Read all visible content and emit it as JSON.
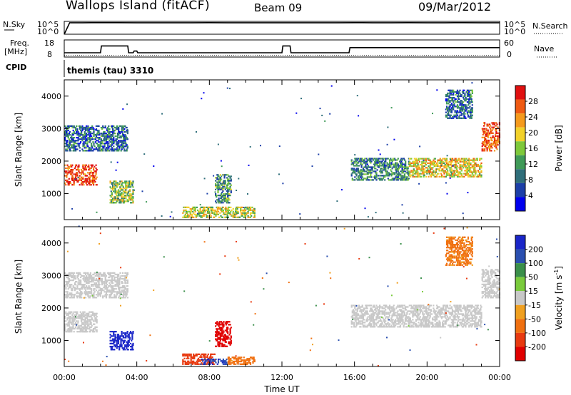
{
  "header": {
    "title": "Wallops Island (fitACF)",
    "beam": "Beam 09",
    "date": "09/Mar/2012",
    "mode_label": "themis (tau) 3310"
  },
  "panels": {
    "nsky_label": "N.Sky",
    "nsky_ticks": [
      "10^5",
      "10^0"
    ],
    "nsearch_label": "N.Search",
    "nsearch_ticks": [
      "10^5",
      "10^0"
    ],
    "freq_label": "Freq.",
    "freq_unit": "[MHz]",
    "freq_ticks": [
      "18",
      "8"
    ],
    "nave_label": "Nave",
    "nave_ticks": [
      "60",
      "0"
    ],
    "cpid_label": "CPID"
  },
  "colors": {
    "power": [
      "#0000ee",
      "#1c3fa8",
      "#2f6e7a",
      "#3f9a58",
      "#7ec93a",
      "#f2d12a",
      "#f59a1c",
      "#ef5a12",
      "#e01010"
    ],
    "velocity": [
      "#1a26c8",
      "#2a4fb0",
      "#3a8f4a",
      "#7acb3c",
      "#c8c8c8",
      "#f0a020",
      "#f07010",
      "#e83a10",
      "#e00000"
    ]
  },
  "chart_data": [
    {
      "type": "line",
      "title": "N.Sky / N.Search",
      "xlabel": "",
      "ylabel": "",
      "x_hours": [
        0,
        0.3,
        1,
        2,
        3,
        4,
        5,
        6,
        7,
        8,
        9,
        10,
        11,
        12,
        13,
        14,
        15,
        16,
        17,
        18,
        19,
        20,
        21,
        22,
        23,
        24
      ],
      "series": [
        {
          "name": "N.Sky",
          "values": [
            1,
            30000,
            30000,
            32000,
            31000,
            30000,
            30000,
            29000,
            30000,
            31000,
            30000,
            30000,
            29000,
            30000,
            30000,
            30000,
            29000,
            31000,
            30000,
            30000,
            31000,
            30000,
            30000,
            31000,
            30000,
            30000
          ]
        },
        {
          "name": "N.Search",
          "values": [
            1,
            1,
            1,
            1,
            1,
            1,
            1,
            1,
            1,
            1,
            1,
            1,
            1,
            1,
            1,
            1,
            1,
            1,
            1,
            1,
            1,
            1,
            1,
            1,
            1,
            1
          ]
        }
      ],
      "ylim": [
        1,
        100000
      ]
    },
    {
      "type": "line",
      "title": "Freq / Nave",
      "xlabel": "",
      "ylabel": "Freq. [MHz]",
      "x_hours": [
        0,
        2,
        2.05,
        3.5,
        3.55,
        3.8,
        3.85,
        4,
        4.05,
        12,
        12.05,
        12.45,
        12.5,
        15.7,
        15.75,
        24
      ],
      "series": [
        {
          "name": "Freq",
          "values": [
            10.5,
            10.5,
            14.5,
            14.5,
            10.5,
            10.5,
            11.5,
            11.5,
            10.5,
            10.5,
            14.5,
            14.5,
            10.5,
            10.5,
            13.5,
            13.5
          ]
        },
        {
          "name": "Nave",
          "values": [
            6,
            6,
            6,
            6,
            6,
            6,
            6,
            6,
            6,
            6,
            6,
            6,
            6,
            6,
            6,
            6
          ]
        }
      ],
      "ylim": [
        8,
        18
      ]
    },
    {
      "type": "heatmap",
      "title": "Power",
      "xlabel": "",
      "ylabel": "Slant Range [km]",
      "xlim_hours": [
        0,
        24
      ],
      "ylim": [
        200,
        4500
      ],
      "x_tick_labels": [
        "00:00",
        "04:00",
        "08:00",
        "12:00",
        "16:00",
        "20:00",
        "00:00"
      ],
      "y_tick_labels": [
        "1000",
        "2000",
        "3000",
        "4000"
      ],
      "colorbar_label": "Power [dB]",
      "colorbar_ticks": [
        "4",
        "8",
        "12",
        "16",
        "20",
        "24",
        "28"
      ],
      "clim": [
        0,
        32
      ],
      "regions": [
        {
          "t0": 0,
          "t1": 1.8,
          "r0": 1250,
          "r1": 1900,
          "value": 28
        },
        {
          "t0": 0,
          "t1": 3.5,
          "r0": 2300,
          "r1": 3100,
          "value": 8
        },
        {
          "t0": 2.5,
          "t1": 3.8,
          "r0": 700,
          "r1": 1400,
          "value": 16
        },
        {
          "t0": 6.5,
          "t1": 10.5,
          "r0": 250,
          "r1": 600,
          "value": 18
        },
        {
          "t0": 8.3,
          "t1": 9.2,
          "r0": 700,
          "r1": 1600,
          "value": 12
        },
        {
          "t0": 15.8,
          "t1": 19,
          "r0": 1400,
          "r1": 2100,
          "value": 10
        },
        {
          "t0": 19,
          "t1": 23,
          "r0": 1500,
          "r1": 2100,
          "value": 20
        },
        {
          "t0": 23,
          "t1": 24,
          "r0": 2300,
          "r1": 3200,
          "value": 28
        },
        {
          "t0": 21,
          "t1": 22.5,
          "r0": 3300,
          "r1": 4200,
          "value": 8
        }
      ]
    },
    {
      "type": "heatmap",
      "title": "Velocity",
      "xlabel": "Time UT",
      "ylabel": "Slant Range [km]",
      "xlim_hours": [
        0,
        24
      ],
      "ylim": [
        200,
        4500
      ],
      "x_tick_labels": [
        "00:00",
        "04:00",
        "08:00",
        "12:00",
        "16:00",
        "20:00",
        "00:00"
      ],
      "y_tick_labels": [
        "1000",
        "2000",
        "3000",
        "4000"
      ],
      "colorbar_label": "Velocity [m s^-1]",
      "colorbar_ticks": [
        "200",
        "100",
        "50",
        "15",
        "-15",
        "-50",
        "-100",
        "-200"
      ],
      "clim": [
        -250,
        250
      ],
      "regions": [
        {
          "t0": 0,
          "t1": 1.8,
          "r0": 1250,
          "r1": 1900,
          "value": 0
        },
        {
          "t0": 0,
          "t1": 3.5,
          "r0": 2300,
          "r1": 3100,
          "value": 0
        },
        {
          "t0": 2.5,
          "t1": 3.8,
          "r0": 700,
          "r1": 1300,
          "value": 220
        },
        {
          "t0": 6.5,
          "t1": 8.3,
          "r0": 250,
          "r1": 600,
          "value": -120
        },
        {
          "t0": 7.5,
          "t1": 9.0,
          "r0": 250,
          "r1": 450,
          "value": 200
        },
        {
          "t0": 9.0,
          "t1": 10.5,
          "r0": 250,
          "r1": 500,
          "value": -80
        },
        {
          "t0": 8.3,
          "t1": 9.2,
          "r0": 800,
          "r1": 1600,
          "value": -220
        },
        {
          "t0": 15.8,
          "t1": 23,
          "r0": 1400,
          "r1": 2100,
          "value": 0
        },
        {
          "t0": 23,
          "t1": 24,
          "r0": 2300,
          "r1": 3200,
          "value": 0
        },
        {
          "t0": 21,
          "t1": 22.5,
          "r0": 3300,
          "r1": 4200,
          "value": -60
        }
      ]
    }
  ]
}
